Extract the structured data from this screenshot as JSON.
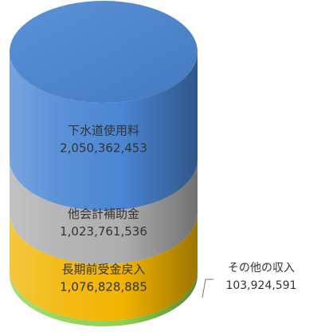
{
  "chart_data": {
    "type": "stacked-cylinder",
    "title": "",
    "unit": "",
    "segments": [
      {
        "name": "その他の収入",
        "value": 103924591,
        "value_label": "103,924,591",
        "color": "#8fd14f",
        "label_position": "outside-right"
      },
      {
        "name": "長期前受金戻入",
        "value": 1076828885,
        "value_label": "1,076,828,885",
        "color": "#f2b400",
        "label_position": "inside"
      },
      {
        "name": "他会計補助金",
        "value": 1023761536,
        "value_label": "1,023,761,536",
        "color": "#aeaeae",
        "label_position": "inside"
      },
      {
        "name": "下水道使用料",
        "value": 2050362453,
        "value_label": "2,050,362,453",
        "color": "#4a86d3",
        "label_position": "inside"
      }
    ]
  }
}
